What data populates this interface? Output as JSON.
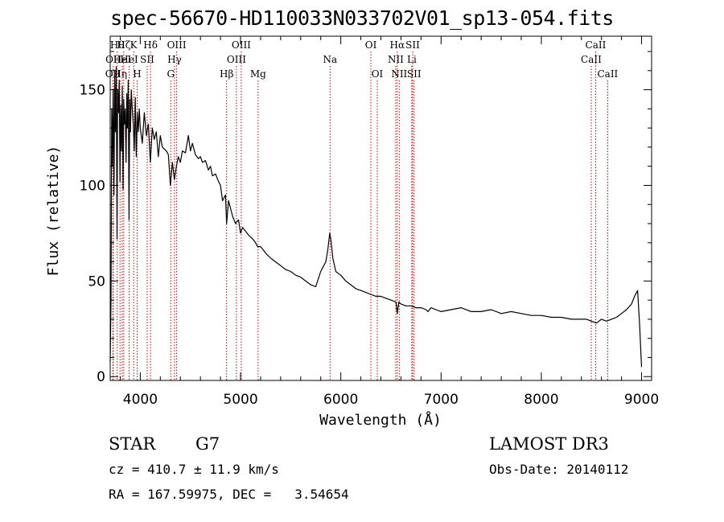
{
  "title": "spec-56670-HD110033N033702V01_sp13-054.fits",
  "info": {
    "class_label": "STAR",
    "subclass": "G7",
    "survey": "LAMOST DR3",
    "cz": "cz = 410.7 ± 11.9 km/s",
    "obs_date": "Obs-Date: 20140112",
    "coords": "RA = 167.59975, DEC =   3.54654"
  },
  "chart_data": {
    "type": "line",
    "title": "spec-56670-HD110033N033702V01_sp13-054.fits",
    "xlabel": "Wavelength (Å)",
    "ylabel": "Flux (relative)",
    "xlim": [
      3700,
      9100
    ],
    "ylim": [
      -2,
      178
    ],
    "xticks": [
      4000,
      5000,
      6000,
      7000,
      8000,
      9000
    ],
    "yticks": [
      0,
      50,
      100,
      150
    ],
    "line_color": "#000000",
    "marker_color": "#cc0000",
    "series": [
      {
        "name": "flux",
        "x": [
          3700,
          3708,
          3715,
          3722,
          3730,
          3738,
          3745,
          3752,
          3760,
          3768,
          3775,
          3782,
          3790,
          3798,
          3805,
          3812,
          3820,
          3828,
          3835,
          3842,
          3850,
          3858,
          3865,
          3872,
          3880,
          3888,
          3895,
          3902,
          3910,
          3920,
          3930,
          3940,
          3950,
          3960,
          3970,
          3980,
          3990,
          4000,
          4020,
          4040,
          4060,
          4080,
          4100,
          4120,
          4140,
          4160,
          4180,
          4200,
          4220,
          4240,
          4260,
          4280,
          4300,
          4320,
          4340,
          4360,
          4380,
          4400,
          4420,
          4450,
          4480,
          4500,
          4520,
          4550,
          4580,
          4600,
          4620,
          4650,
          4680,
          4700,
          4720,
          4750,
          4780,
          4800,
          4820,
          4850,
          4861,
          4880,
          4900,
          4920,
          4950,
          4980,
          5000,
          5020,
          5050,
          5080,
          5100,
          5120,
          5150,
          5170,
          5183,
          5200,
          5230,
          5260,
          5300,
          5350,
          5400,
          5450,
          5500,
          5550,
          5600,
          5650,
          5700,
          5750,
          5800,
          5830,
          5850,
          5870,
          5890,
          5900,
          5920,
          5950,
          6000,
          6050,
          6100,
          6150,
          6200,
          6250,
          6300,
          6350,
          6400,
          6450,
          6500,
          6550,
          6563,
          6580,
          6600,
          6650,
          6700,
          6750,
          6800,
          6850,
          6870,
          6900,
          6950,
          7000,
          7100,
          7200,
          7300,
          7400,
          7500,
          7600,
          7700,
          7800,
          7900,
          8000,
          8100,
          8200,
          8300,
          8400,
          8450,
          8500,
          8550,
          8600,
          8650,
          8700,
          8750,
          8800,
          8850,
          8900,
          8930,
          8960,
          8980,
          9000
        ],
        "y": [
          8,
          40,
          140,
          110,
          150,
          95,
          158,
          128,
          162,
          72,
          150,
          138,
          155,
          102,
          142,
          118,
          152,
          98,
          145,
          132,
          140,
          112,
          148,
          130,
          155,
          82,
          145,
          128,
          150,
          140,
          132,
          118,
          146,
          115,
          138,
          128,
          140,
          130,
          122,
          138,
          126,
          132,
          112,
          130,
          124,
          128,
          115,
          126,
          120,
          119,
          118,
          116,
          100,
          112,
          103,
          110,
          115,
          112,
          118,
          117,
          126,
          118,
          122,
          116,
          114,
          115,
          112,
          113,
          108,
          110,
          105,
          106,
          102,
          100,
          92,
          95,
          80,
          92,
          88,
          84,
          80,
          82,
          75,
          78,
          76,
          74,
          73,
          72,
          70,
          68,
          68,
          68,
          66,
          64,
          62,
          60,
          58,
          56,
          55,
          53,
          52,
          50,
          48,
          47,
          55,
          58,
          60,
          66,
          75,
          72,
          62,
          55,
          53,
          50,
          48,
          46,
          45,
          44,
          43,
          42,
          42,
          41,
          40,
          39,
          33,
          39,
          38,
          37,
          37,
          36,
          36,
          35,
          34,
          36,
          35,
          34,
          35,
          36,
          34,
          34,
          35,
          33,
          34,
          33,
          32,
          32,
          31,
          31,
          30,
          30,
          30,
          29,
          28,
          30,
          29,
          30,
          31,
          33,
          35,
          38,
          42,
          45,
          28,
          5
        ]
      }
    ],
    "line_markers": [
      {
        "wl": 3727,
        "label": "OII",
        "row": 2
      },
      {
        "wl": 3730,
        "label": "OII",
        "row": 1
      },
      {
        "wl": 3770,
        "label": "Hθ",
        "row": 0
      },
      {
        "wl": 3798,
        "label": "Hη",
        "row": 2
      },
      {
        "wl": 3820,
        "label": "HeI",
        "row": 1
      },
      {
        "wl": 3835,
        "label": "Hζ",
        "row": 0
      },
      {
        "wl": 3889,
        "label": "HeI",
        "row": 1
      },
      {
        "wl": 3934,
        "label": "K",
        "row": 0
      },
      {
        "wl": 3969,
        "label": "H",
        "row": 2
      },
      {
        "wl": 4069,
        "label": "SII",
        "row": 1
      },
      {
        "wl": 4102,
        "label": "Hδ",
        "row": 0
      },
      {
        "wl": 4304,
        "label": "G",
        "row": 2
      },
      {
        "wl": 4341,
        "label": "Hγ",
        "row": 1
      },
      {
        "wl": 4363,
        "label": "OIII",
        "row": 0
      },
      {
        "wl": 4861,
        "label": "Hβ",
        "row": 2
      },
      {
        "wl": 4959,
        "label": "OIII",
        "row": 1
      },
      {
        "wl": 5007,
        "label": "OIII",
        "row": 0
      },
      {
        "wl": 5175,
        "label": "Mg",
        "row": 2
      },
      {
        "wl": 5893,
        "label": "Na",
        "row": 1
      },
      {
        "wl": 6300,
        "label": "OI",
        "row": 0
      },
      {
        "wl": 6364,
        "label": "OI",
        "row": 2
      },
      {
        "wl": 6548,
        "label": "NII",
        "row": 1
      },
      {
        "wl": 6563,
        "label": "Hα",
        "row": 0
      },
      {
        "wl": 6583,
        "label": "NII",
        "row": 2
      },
      {
        "wl": 6708,
        "label": "Li",
        "row": 1
      },
      {
        "wl": 6717,
        "label": "SII",
        "row": 0
      },
      {
        "wl": 6731,
        "label": "SII",
        "row": 2
      },
      {
        "wl": 8498,
        "label": "CaII",
        "row": 1
      },
      {
        "wl": 8542,
        "label": "CaII",
        "row": 0
      },
      {
        "wl": 8662,
        "label": "CaII",
        "row": 2
      }
    ]
  }
}
